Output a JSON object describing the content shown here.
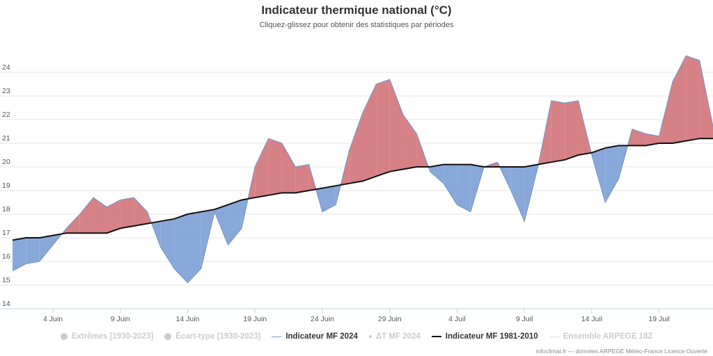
{
  "header": {
    "title": "Indicateur thermique national (°C)",
    "subtitle": "Cliquez-glissez pour obtenir des statistiques par périodes"
  },
  "legend": [
    {
      "label": "Extrêmes [1930-2023]",
      "symbol": "dot",
      "active": false
    },
    {
      "label": "Écart-type [1930-2023]",
      "symbol": "dot",
      "active": false
    },
    {
      "label": "Indicateur MF 2024",
      "symbol": "line",
      "color": "#6f9bd1",
      "active": true
    },
    {
      "label": "ΔT MF 2024",
      "symbol": "small-dot",
      "active": false
    },
    {
      "label": "Indicateur MF 1981-2010",
      "symbol": "line",
      "color": "#111111",
      "active": true
    },
    {
      "label": "Ensemble ARPEGE 18Z",
      "symbol": "line",
      "color": "#dddddd",
      "active": false
    }
  ],
  "credits": "infoclimat.fr — données ARPEGE Météo-France Licence Ouverte",
  "chart_data": {
    "type": "area",
    "title": "Indicateur thermique national (°C)",
    "ylim": [
      14,
      25
    ],
    "yticks": [
      14,
      15,
      16,
      17,
      18,
      19,
      20,
      21,
      22,
      23,
      24
    ],
    "grid": true,
    "legend_position": "bottom",
    "x_start": "1 Juin",
    "xticks": [
      {
        "day": 4,
        "label": "4 Juin"
      },
      {
        "day": 9,
        "label": "9 Juin"
      },
      {
        "day": 14,
        "label": "14 Juin"
      },
      {
        "day": 19,
        "label": "19 Juin"
      },
      {
        "day": 24,
        "label": "24 Juin"
      },
      {
        "day": 29,
        "label": "29 Juin"
      },
      {
        "day": 34,
        "label": "4 Juil"
      },
      {
        "day": 39,
        "label": "9 Juil"
      },
      {
        "day": 44,
        "label": "14 Juil"
      },
      {
        "day": 49,
        "label": "19 Juil"
      }
    ],
    "colors": {
      "above": "#d27378",
      "below": "#7c9fd6",
      "actual_line": "#7b9ac9",
      "normal_line": "#111111"
    },
    "series": [
      {
        "name": "Indicateur MF 2024",
        "values": [
          15.6,
          15.9,
          16.0,
          16.7,
          17.4,
          18.0,
          18.7,
          18.3,
          18.6,
          18.7,
          18.1,
          16.6,
          15.7,
          15.1,
          15.7,
          18.1,
          16.7,
          17.4,
          20.0,
          21.2,
          21.0,
          20.0,
          20.1,
          18.1,
          18.4,
          20.7,
          22.3,
          23.5,
          23.7,
          22.2,
          21.4,
          19.8,
          19.3,
          18.4,
          18.1,
          20.0,
          20.2,
          19.0,
          17.7,
          20.0,
          22.8,
          22.7,
          22.8,
          20.5,
          18.5,
          19.5,
          21.6,
          21.4,
          21.3,
          23.6,
          24.7,
          24.5,
          21.7
        ]
      },
      {
        "name": "Indicateur MF 1981-2010",
        "values": [
          16.9,
          17.0,
          17.0,
          17.1,
          17.2,
          17.2,
          17.2,
          17.2,
          17.4,
          17.5,
          17.6,
          17.7,
          17.8,
          18.0,
          18.1,
          18.2,
          18.4,
          18.6,
          18.7,
          18.8,
          18.9,
          18.9,
          19.0,
          19.1,
          19.2,
          19.3,
          19.4,
          19.6,
          19.8,
          19.9,
          20.0,
          20.0,
          20.1,
          20.1,
          20.1,
          20.0,
          20.0,
          20.0,
          20.0,
          20.1,
          20.2,
          20.3,
          20.5,
          20.6,
          20.8,
          20.9,
          20.9,
          20.9,
          21.0,
          21.0,
          21.1,
          21.2,
          21.2
        ]
      }
    ]
  }
}
